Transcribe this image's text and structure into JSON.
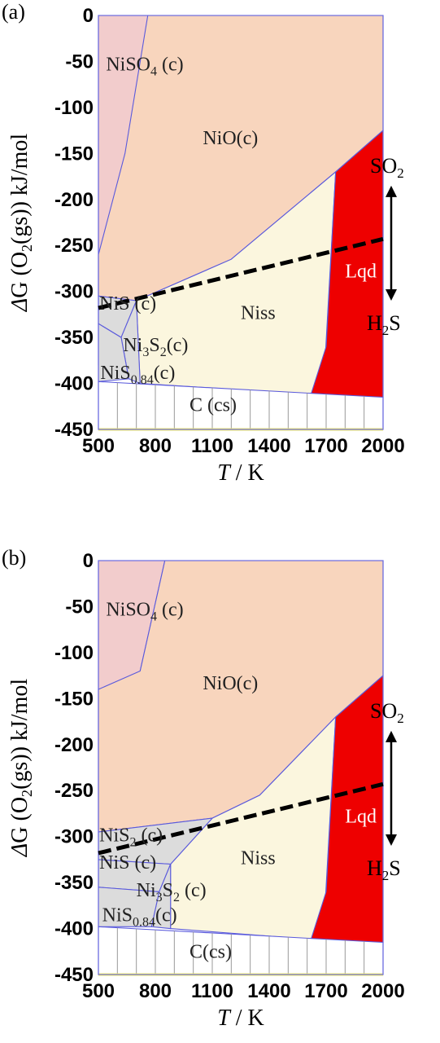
{
  "chart_data": [
    {
      "type": "area",
      "panel_label": "(a)",
      "xlabel_italic": "T",
      "xlabel_rest": " / K",
      "ylabel": "ΔG (O2(gs)) kJ/mol",
      "xlim": [
        500,
        2000
      ],
      "ylim": [
        -450,
        0
      ],
      "x_ticks": [
        "500",
        "800",
        "1100",
        "1400",
        "1700",
        "2000"
      ],
      "y_ticks": [
        "0",
        "-50",
        "-100",
        "-150",
        "-200",
        "-250",
        "-300",
        "-350",
        "-400",
        "-450"
      ],
      "regions": [
        {
          "name": "NiSO4 (c)",
          "label": "NiSO4 (c)",
          "color": "#f2cccc"
        },
        {
          "name": "NiO(c)",
          "label": "NiO(c)",
          "color": "#f8d5bd"
        },
        {
          "name": "Niss",
          "label": "Niss",
          "color": "#fbf6de"
        },
        {
          "name": "Lqd",
          "label": "Lqd",
          "color": "#ee0000"
        },
        {
          "name": "NiS (c)",
          "label": "NiS (c)",
          "color": "#dcdcdc"
        },
        {
          "name": "Ni3S2(c)",
          "label": "Ni3S2(c)",
          "color": "#dcdcdc"
        },
        {
          "name": "NiS0.84(c)",
          "label": "NiS0.84(c)",
          "color": "#dcdcdc"
        },
        {
          "name": "C (cs)",
          "label": "C (cs)",
          "color": "#ffffff"
        }
      ],
      "gas_line": {
        "x": [
          500,
          2000
        ],
        "y": [
          -318,
          -243
        ],
        "style": "dashed"
      },
      "arrow": {
        "x": 1960,
        "y_top": -185,
        "y_bottom": -310,
        "top_label": "SO2",
        "bottom_label": "H2S"
      }
    },
    {
      "type": "area",
      "panel_label": "(b)",
      "xlabel_italic": "T",
      "xlabel_rest": " / K",
      "ylabel": "ΔG (O2(gs)) kJ/mol",
      "xlim": [
        500,
        2000
      ],
      "ylim": [
        -450,
        0
      ],
      "x_ticks": [
        "500",
        "800",
        "1100",
        "1400",
        "1700",
        "2000"
      ],
      "y_ticks": [
        "0",
        "-50",
        "-100",
        "-150",
        "-200",
        "-250",
        "-300",
        "-350",
        "-400",
        "-450"
      ],
      "regions": [
        {
          "name": "NiSO4 (c)",
          "label": "NiSO4 (c)",
          "color": "#f2cccc"
        },
        {
          "name": "NiO(c)",
          "label": "NiO(c)",
          "color": "#f8d5bd"
        },
        {
          "name": "Niss",
          "label": "Niss",
          "color": "#fbf6de"
        },
        {
          "name": "Lqd",
          "label": "Lqd",
          "color": "#ee0000"
        },
        {
          "name": "NiS2 (c)",
          "label": "NiS2 (c)",
          "color": "#dcdcdc"
        },
        {
          "name": "NiS (c)",
          "label": "NiS (c)",
          "color": "#dcdcdc"
        },
        {
          "name": "Ni3S2 (c)",
          "label": "Ni3S2 (c)",
          "color": "#dcdcdc"
        },
        {
          "name": "NiS0.84(c)",
          "label": "NiS0.84(c)",
          "color": "#dcdcdc"
        },
        {
          "name": "C(cs)",
          "label": "C(cs)",
          "color": "#ffffff"
        }
      ],
      "gas_line": {
        "x": [
          500,
          2000
        ],
        "y": [
          -318,
          -243
        ],
        "style": "dashed"
      },
      "arrow": {
        "x": 1960,
        "y_top": -185,
        "y_bottom": -310,
        "top_label": "SO2",
        "bottom_label": "H2S"
      }
    }
  ]
}
